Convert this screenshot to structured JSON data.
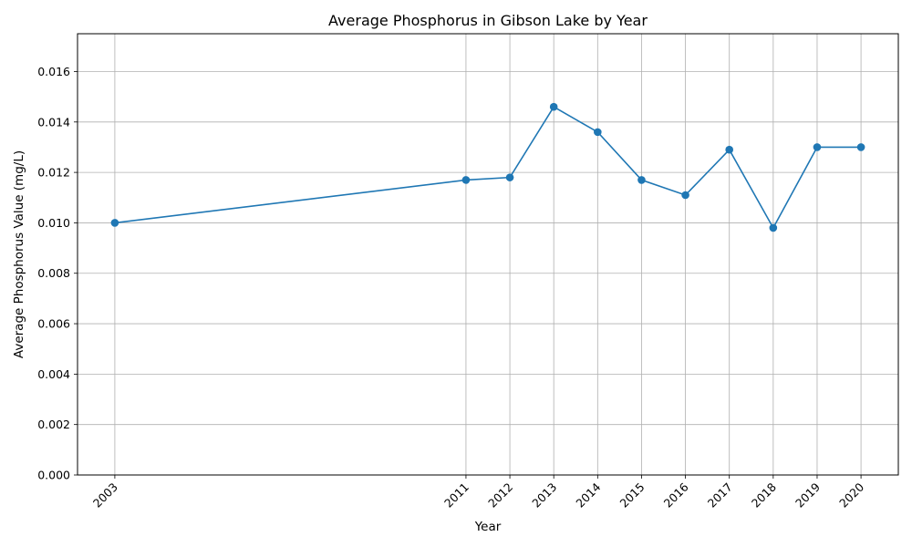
{
  "chart_data": {
    "type": "line",
    "title": "Average Phosphorus in Gibson Lake by Year",
    "xlabel": "Year",
    "ylabel": "Average Phosphorus Value (mg/L)",
    "x": [
      2003,
      2011,
      2012,
      2013,
      2014,
      2015,
      2016,
      2017,
      2018,
      2019,
      2020
    ],
    "series": [
      {
        "values": [
          0.01,
          0.0117,
          0.0118,
          0.0146,
          0.0136,
          0.0117,
          0.0111,
          0.0129,
          0.0098,
          0.013,
          0.013
        ]
      }
    ],
    "xlim": [
      2002.15,
      2020.85
    ],
    "ylim": [
      0,
      0.0175
    ],
    "x_tick_labels": [
      "2003",
      "2011",
      "2012",
      "2013",
      "2014",
      "2015",
      "2016",
      "2017",
      "2018",
      "2019",
      "2020"
    ],
    "y_tick_labels": [
      "0.000",
      "0.002",
      "0.004",
      "0.006",
      "0.008",
      "0.010",
      "0.012",
      "0.014",
      "0.016"
    ],
    "y_ticks": [
      0,
      0.002,
      0.004,
      0.006,
      0.008,
      0.01,
      0.012,
      0.014,
      0.016
    ],
    "grid": true,
    "line_color": "#1f77b4",
    "marker": "circle"
  }
}
